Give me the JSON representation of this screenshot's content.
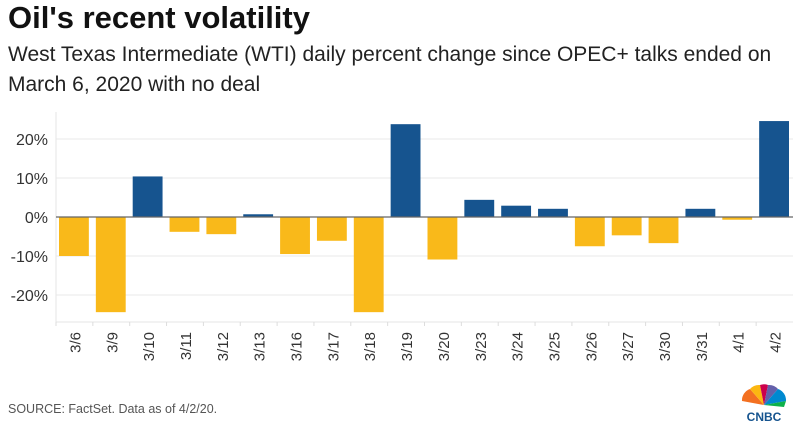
{
  "chart_data": {
    "type": "bar",
    "title": "Oil's recent volatility",
    "subtitle": "West Texas Intermediate (WTI) daily percent change since OPEC+ talks ended on March 6, 2020 with no deal",
    "categories": [
      "3/6",
      "3/9",
      "3/10",
      "3/11",
      "3/12",
      "3/13",
      "3/16",
      "3/17",
      "3/18",
      "3/19",
      "3/20",
      "3/23",
      "3/24",
      "3/25",
      "3/26",
      "3/27",
      "3/30",
      "3/31",
      "4/1",
      "4/2"
    ],
    "values": [
      -10.0,
      -24.4,
      10.4,
      -3.8,
      -4.4,
      0.7,
      -9.5,
      -6.1,
      -24.4,
      23.8,
      -10.9,
      4.4,
      2.9,
      2.1,
      -7.5,
      -4.7,
      -6.7,
      2.1,
      -0.7,
      24.6
    ],
    "yticks": [
      20,
      10,
      0,
      -10,
      -20
    ],
    "ytick_labels": [
      "20%",
      "10%",
      "0%",
      "-10%",
      "-20%"
    ],
    "ylim": [
      -27,
      27
    ],
    "xlabel": "",
    "ylabel": "",
    "grid": true,
    "colors": {
      "positive": "#16548f",
      "negative": "#f9b91a"
    }
  },
  "source": "SOURCE: FactSet. Data as of 4/2/20.",
  "logo_text": "CNBC"
}
